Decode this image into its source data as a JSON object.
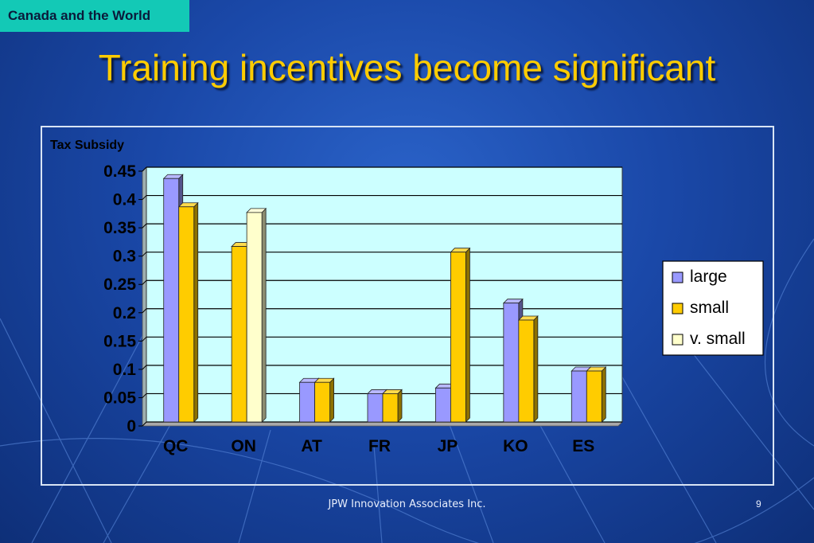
{
  "corner_tag": "Canada and the World",
  "title": "Training incentives become significant",
  "footer": "JPW Innovation Associates Inc.",
  "page_number": "9",
  "colors": {
    "accent_title": "#ffcc00",
    "corner_tag": "#13c9b6",
    "plot_background": "#ccffff",
    "large": "#9999ff",
    "small": "#ffcc00",
    "v_small": "#ffffcc"
  },
  "chart_data": {
    "type": "bar",
    "ylabel": "Tax Subsidy",
    "categories": [
      "QC",
      "ON",
      "AT",
      "FR",
      "JP",
      "KO",
      "ES"
    ],
    "series": [
      {
        "name": "large",
        "color": "#9999ff",
        "values": [
          0.43,
          null,
          0.07,
          0.05,
          0.06,
          0.21,
          0.09
        ]
      },
      {
        "name": "small",
        "color": "#ffcc00",
        "values": [
          0.38,
          0.31,
          0.07,
          0.05,
          0.3,
          0.18,
          0.09
        ]
      },
      {
        "name": "v. small",
        "color": "#ffffcc",
        "values": [
          null,
          0.37,
          null,
          null,
          null,
          null,
          null
        ]
      }
    ],
    "ylim": [
      0,
      0.45
    ],
    "yticks": [
      "0",
      "0.05",
      "0.1",
      "0.15",
      "0.2",
      "0.25",
      "0.3",
      "0.35",
      "0.4",
      "0.45"
    ],
    "grid": true,
    "legend_position": "right"
  }
}
